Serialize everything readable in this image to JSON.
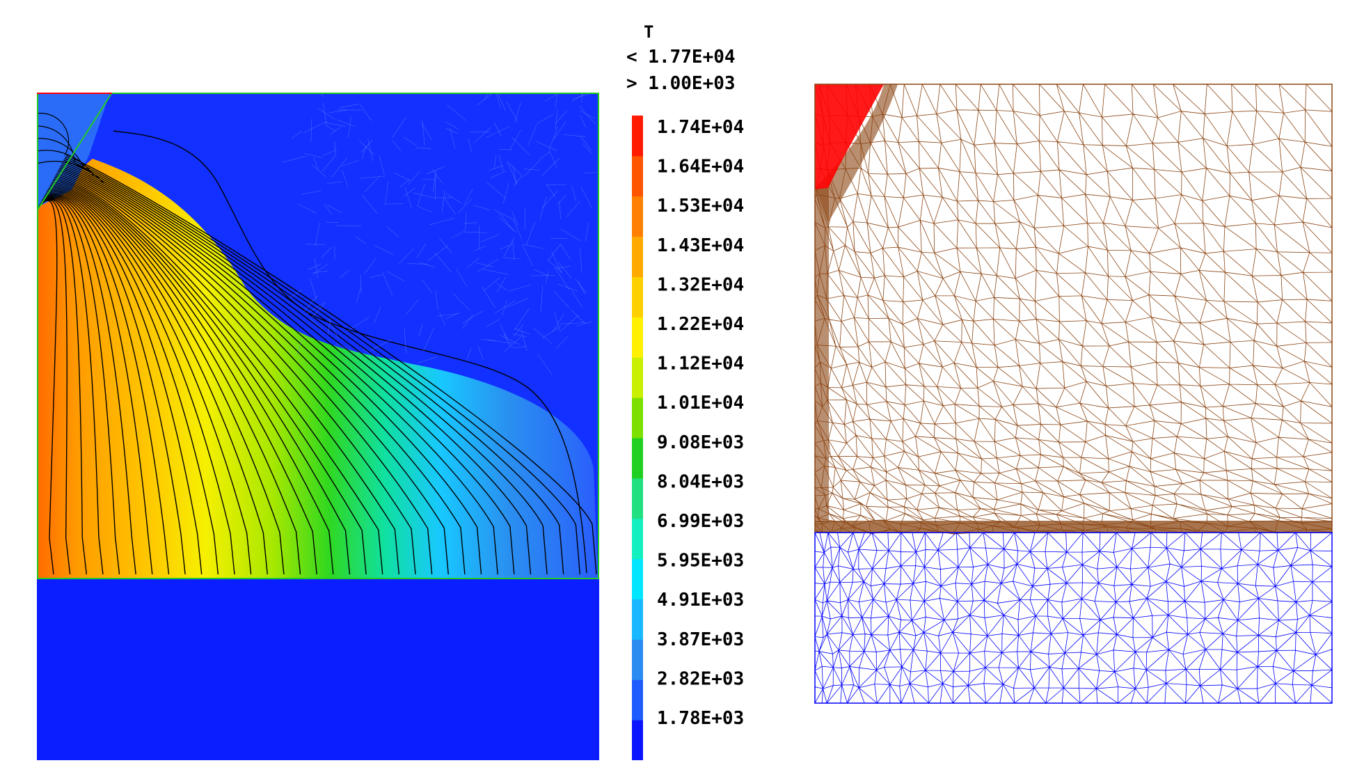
{
  "figure": {
    "variable_label": "T",
    "range_max_text": "< 1.77E+04",
    "range_min_text": "> 1.00E+03"
  },
  "legend": {
    "title": "T",
    "tick_labels": [
      "1.74E+04",
      "1.64E+04",
      "1.53E+04",
      "1.43E+04",
      "1.32E+04",
      "1.22E+04",
      "1.12E+04",
      "1.01E+04",
      "9.08E+03",
      "8.04E+03",
      "6.99E+03",
      "5.95E+03",
      "4.91E+03",
      "3.87E+03",
      "2.82E+03",
      "1.78E+03"
    ],
    "colors": [
      "#0a14ff",
      "#1e5cff",
      "#2a8cf0",
      "#18b8ff",
      "#00e6ff",
      "#12f0c0",
      "#20e080",
      "#20d020",
      "#7ce000",
      "#c8f000",
      "#fff000",
      "#ffd000",
      "#ffaa00",
      "#ff8000",
      "#ff5400",
      "#ff1a00"
    ]
  },
  "colors": {
    "cold_fill": "#0a1eff",
    "mesh_upper": "#8b4513",
    "mesh_lower": "#0000ff",
    "hot_region": "#ff0000",
    "domain_border": "#22cc22",
    "isoline": "#000000"
  }
}
